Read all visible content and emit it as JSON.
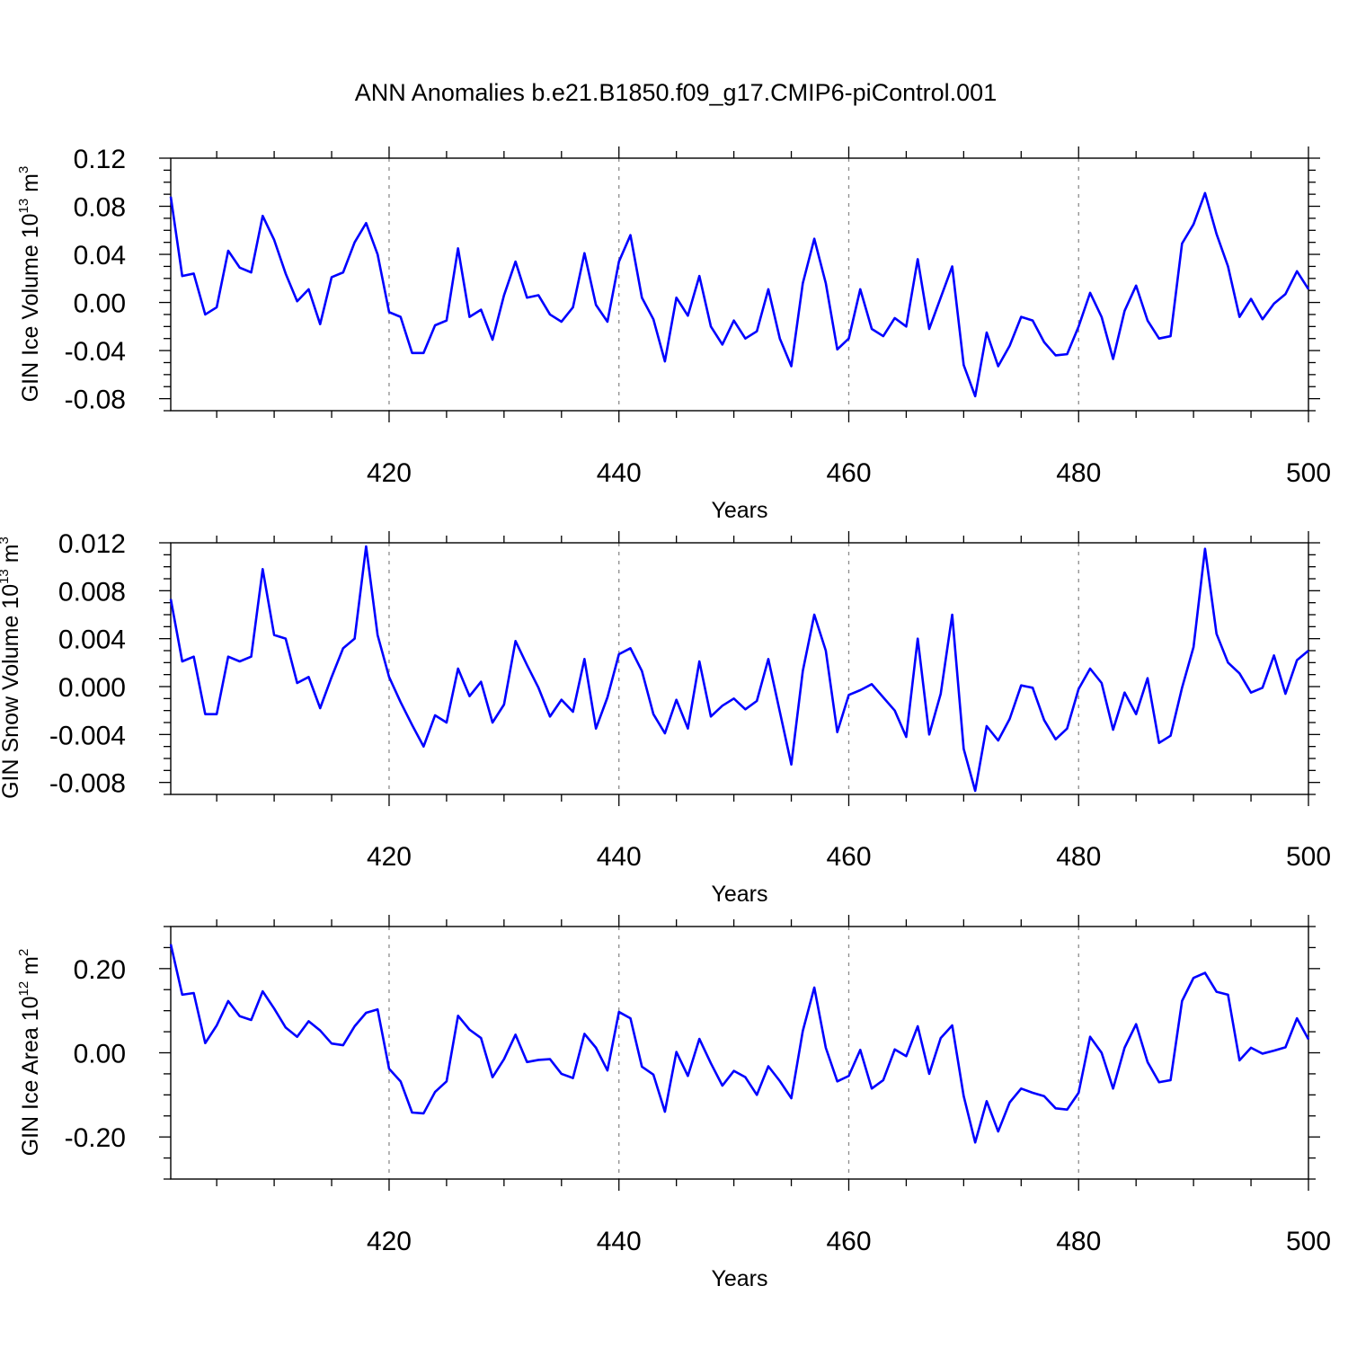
{
  "title": "ANN Anomalies b.e21.B1850.f09_g17.CMIP6-piControl.001",
  "colors": {
    "series": "#0000ff",
    "axis": "#000000",
    "grid": "#8c8c8c"
  },
  "chart_data": [
    {
      "type": "line",
      "xlabel": "Years",
      "ylabel": {
        "prefix": "GIN Ice Volume 10",
        "exponent": "13",
        "unit": " m",
        "unit_exponent": "3"
      },
      "xlim": [
        401,
        500
      ],
      "ylim": [
        -0.09,
        0.12
      ],
      "x_ticks": [
        420,
        440,
        460,
        480,
        500
      ],
      "x_tick_labels": [
        "420",
        "440",
        "460",
        "480",
        "500"
      ],
      "y_ticks": [
        -0.08,
        -0.04,
        0.0,
        0.04,
        0.08,
        0.12
      ],
      "y_tick_labels": [
        "-0.08",
        "-0.04",
        "0.00",
        "0.04",
        "0.08",
        "0.12"
      ],
      "grid": "vertical dashed at major x ticks",
      "x_start": 401,
      "values": [
        0.088,
        0.022,
        0.024,
        -0.01,
        -0.004,
        0.043,
        0.029,
        0.025,
        0.072,
        0.052,
        0.024,
        0.001,
        0.011,
        -0.018,
        0.021,
        0.025,
        0.05,
        0.066,
        0.04,
        -0.008,
        -0.012,
        -0.042,
        -0.042,
        -0.019,
        -0.015,
        0.045,
        -0.012,
        -0.006,
        -0.031,
        0.006,
        0.034,
        0.004,
        0.006,
        -0.01,
        -0.016,
        -0.004,
        0.041,
        -0.002,
        -0.016,
        0.034,
        0.056,
        0.004,
        -0.014,
        -0.049,
        0.004,
        -0.011,
        0.022,
        -0.02,
        -0.035,
        -0.015,
        -0.03,
        -0.024,
        0.011,
        -0.03,
        -0.053,
        0.016,
        0.053,
        0.016,
        -0.039,
        -0.03,
        0.011,
        -0.022,
        -0.028,
        -0.013,
        -0.02,
        0.036,
        -0.022,
        0.004,
        0.03,
        -0.052,
        -0.078,
        -0.025,
        -0.053,
        -0.036,
        -0.012,
        -0.015,
        -0.033,
        -0.044,
        -0.043,
        -0.02,
        0.008,
        -0.012,
        -0.047,
        -0.007,
        0.014,
        -0.015,
        -0.03,
        -0.028,
        0.049,
        0.065,
        0.091,
        0.057,
        0.03,
        -0.012,
        0.003,
        -0.014,
        -0.001,
        0.007,
        0.026,
        0.011
      ]
    },
    {
      "type": "line",
      "xlabel": "Years",
      "ylabel": {
        "prefix": "GIN Snow Volume 10",
        "exponent": "13",
        "unit": " m",
        "unit_exponent": "3"
      },
      "xlim": [
        401,
        500
      ],
      "ylim": [
        -0.009,
        0.012
      ],
      "x_ticks": [
        420,
        440,
        460,
        480,
        500
      ],
      "x_tick_labels": [
        "420",
        "440",
        "460",
        "480",
        "500"
      ],
      "y_ticks": [
        -0.008,
        -0.004,
        0.0,
        0.004,
        0.008,
        0.012
      ],
      "y_tick_labels": [
        "-0.008",
        "-0.004",
        "0.000",
        "0.004",
        "0.008",
        "0.012"
      ],
      "grid": "vertical dashed at major x ticks",
      "x_start": 401,
      "values": [
        0.0073,
        0.0021,
        0.0025,
        -0.0023,
        -0.0023,
        0.0025,
        0.0021,
        0.0025,
        0.0098,
        0.0043,
        0.004,
        0.0003,
        0.0008,
        -0.0018,
        0.0008,
        0.0032,
        0.004,
        0.0117,
        0.0043,
        0.0008,
        -0.0013,
        -0.0032,
        -0.005,
        -0.0024,
        -0.003,
        0.0015,
        -0.0008,
        0.0004,
        -0.003,
        -0.0015,
        0.0038,
        0.0018,
        -0.0001,
        -0.0025,
        -0.0011,
        -0.0021,
        0.0023,
        -0.0035,
        -0.0009,
        0.0027,
        0.0032,
        0.0013,
        -0.0023,
        -0.0039,
        -0.0011,
        -0.0035,
        0.0021,
        -0.0025,
        -0.0016,
        -0.001,
        -0.0019,
        -0.0012,
        0.0023,
        -0.0021,
        -0.0065,
        0.0013,
        0.006,
        0.003,
        -0.0038,
        -0.0007,
        -0.0003,
        0.0002,
        -0.0009,
        -0.002,
        -0.0042,
        0.004,
        -0.004,
        -0.0006,
        0.006,
        -0.0052,
        -0.0087,
        -0.0033,
        -0.0045,
        -0.0027,
        0.0001,
        -0.0001,
        -0.0028,
        -0.0044,
        -0.0035,
        -0.0002,
        0.0015,
        0.0003,
        -0.0036,
        -0.0005,
        -0.0023,
        0.0007,
        -0.0047,
        -0.0041,
        -0.0001,
        0.0033,
        0.0115,
        0.0044,
        0.002,
        0.0011,
        -0.0005,
        -0.0001,
        0.0026,
        -0.0006,
        0.0022,
        0.003
      ]
    },
    {
      "type": "line",
      "xlabel": "Years",
      "ylabel": {
        "prefix": "GIN Ice Area 10",
        "exponent": "12",
        "unit": " m",
        "unit_exponent": "2"
      },
      "xlim": [
        401,
        500
      ],
      "ylim": [
        -0.3,
        0.3
      ],
      "x_ticks": [
        420,
        440,
        460,
        480,
        500
      ],
      "x_tick_labels": [
        "420",
        "440",
        "460",
        "480",
        "500"
      ],
      "y_ticks": [
        -0.2,
        0.0,
        0.2
      ],
      "y_tick_labels": [
        "-0.20",
        "0.00",
        "0.20"
      ],
      "grid": "vertical dashed at major x ticks",
      "x_start": 401,
      "values": [
        0.258,
        0.138,
        0.142,
        0.023,
        0.065,
        0.123,
        0.087,
        0.078,
        0.146,
        0.105,
        0.06,
        0.038,
        0.075,
        0.053,
        0.022,
        0.018,
        0.063,
        0.095,
        0.103,
        -0.038,
        -0.068,
        -0.142,
        -0.144,
        -0.093,
        -0.068,
        0.088,
        0.055,
        0.035,
        -0.058,
        -0.015,
        0.043,
        -0.022,
        -0.017,
        -0.015,
        -0.05,
        -0.06,
        0.045,
        0.012,
        -0.042,
        0.097,
        0.082,
        -0.033,
        -0.052,
        -0.14,
        0.002,
        -0.055,
        0.033,
        -0.025,
        -0.078,
        -0.043,
        -0.058,
        -0.1,
        -0.032,
        -0.067,
        -0.108,
        0.052,
        0.155,
        0.012,
        -0.068,
        -0.055,
        0.007,
        -0.085,
        -0.065,
        0.008,
        -0.008,
        0.063,
        -0.05,
        0.035,
        0.065,
        -0.103,
        -0.213,
        -0.115,
        -0.187,
        -0.118,
        -0.085,
        -0.095,
        -0.103,
        -0.132,
        -0.135,
        -0.095,
        0.038,
        0.0,
        -0.085,
        0.012,
        0.068,
        -0.022,
        -0.07,
        -0.065,
        0.123,
        0.178,
        0.19,
        0.145,
        0.138,
        -0.018,
        0.012,
        -0.002,
        0.005,
        0.013,
        0.082,
        0.032
      ]
    }
  ]
}
